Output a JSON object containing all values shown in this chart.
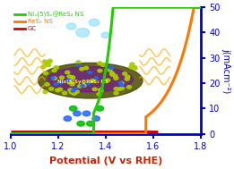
{
  "xlabel": "Potential (V vs RHE)",
  "ylabel_right": "j(mAcm⁻²)",
  "xlim": [
    1.0,
    1.8
  ],
  "ylim": [
    0,
    50
  ],
  "x_ticks": [
    1.0,
    1.2,
    1.4,
    1.6,
    1.8
  ],
  "y_ticks": [
    0,
    10,
    20,
    30,
    40,
    50
  ],
  "background_color": "#ffffff",
  "legend": [
    {
      "label": "Niₓ(5)Sᵥ@ReS₂ NS",
      "color": "#22cc00"
    },
    {
      "label": "ReS₂ NS",
      "color": "#ff7700"
    },
    {
      "label": "GC",
      "color": "#dd0000"
    }
  ],
  "curve_green": {
    "color": "#22cc00",
    "x_onset": 1.35,
    "x_steep": 1.44,
    "scale": 60,
    "linewidth": 2.2
  },
  "curve_orange": {
    "color": "#ff7700",
    "x_onset": 1.57,
    "x_steep": 1.75,
    "scale": 40,
    "linewidth": 2.2
  },
  "curve_red": {
    "color": "#cc0000",
    "y_val": 0.5,
    "x_end": 1.62,
    "linewidth": 3.5
  },
  "axis_color": "#0000cc",
  "spine_color": "#0000cc",
  "xlabel_color": "#cc2200",
  "xlabel_fontsize": 8,
  "ylabel_fontsize": 7,
  "tick_fontsize": 7,
  "tick_color": "#0000cc"
}
